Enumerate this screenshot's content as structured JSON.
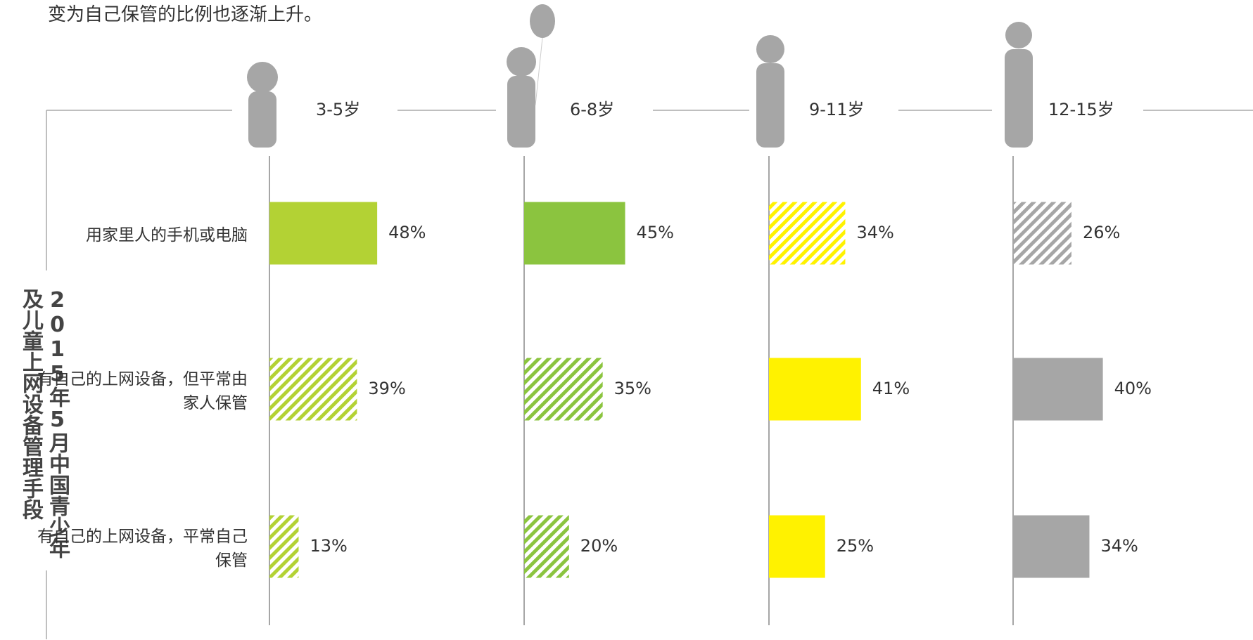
{
  "intro": "变为自己保管的比例也逐渐上升。",
  "chart_data": {
    "type": "bar",
    "title": "2015年5月中国青少年及儿童上网设备管理手段",
    "categories": [
      "用家里人的手机或电脑",
      "有自己的上网设备，但平常由家人保管",
      "有自己的上网设备，平常自己保管"
    ],
    "series": [
      {
        "name": "3-5岁",
        "color": "#b3d234",
        "hatch": [
          false,
          true,
          true
        ],
        "values": [
          48,
          39,
          13
        ],
        "value_labels": [
          "48%",
          "39%",
          "13%"
        ]
      },
      {
        "name": "6-8岁",
        "color": "#8bc43f",
        "hatch": [
          false,
          true,
          true
        ],
        "values": [
          45,
          35,
          20
        ],
        "value_labels": [
          "45%",
          "35%",
          "20%"
        ]
      },
      {
        "name": "9-11岁",
        "color": "#fff200",
        "hatch": [
          true,
          false,
          false
        ],
        "values": [
          34,
          41,
          25
        ],
        "value_labels": [
          "34%",
          "41%",
          "25%"
        ]
      },
      {
        "name": "12-15岁",
        "color": "#a6a6a6",
        "hatch": [
          true,
          false,
          false
        ],
        "values": [
          26,
          40,
          34
        ],
        "value_labels": [
          "26%",
          "40%",
          "34%"
        ]
      }
    ]
  }
}
